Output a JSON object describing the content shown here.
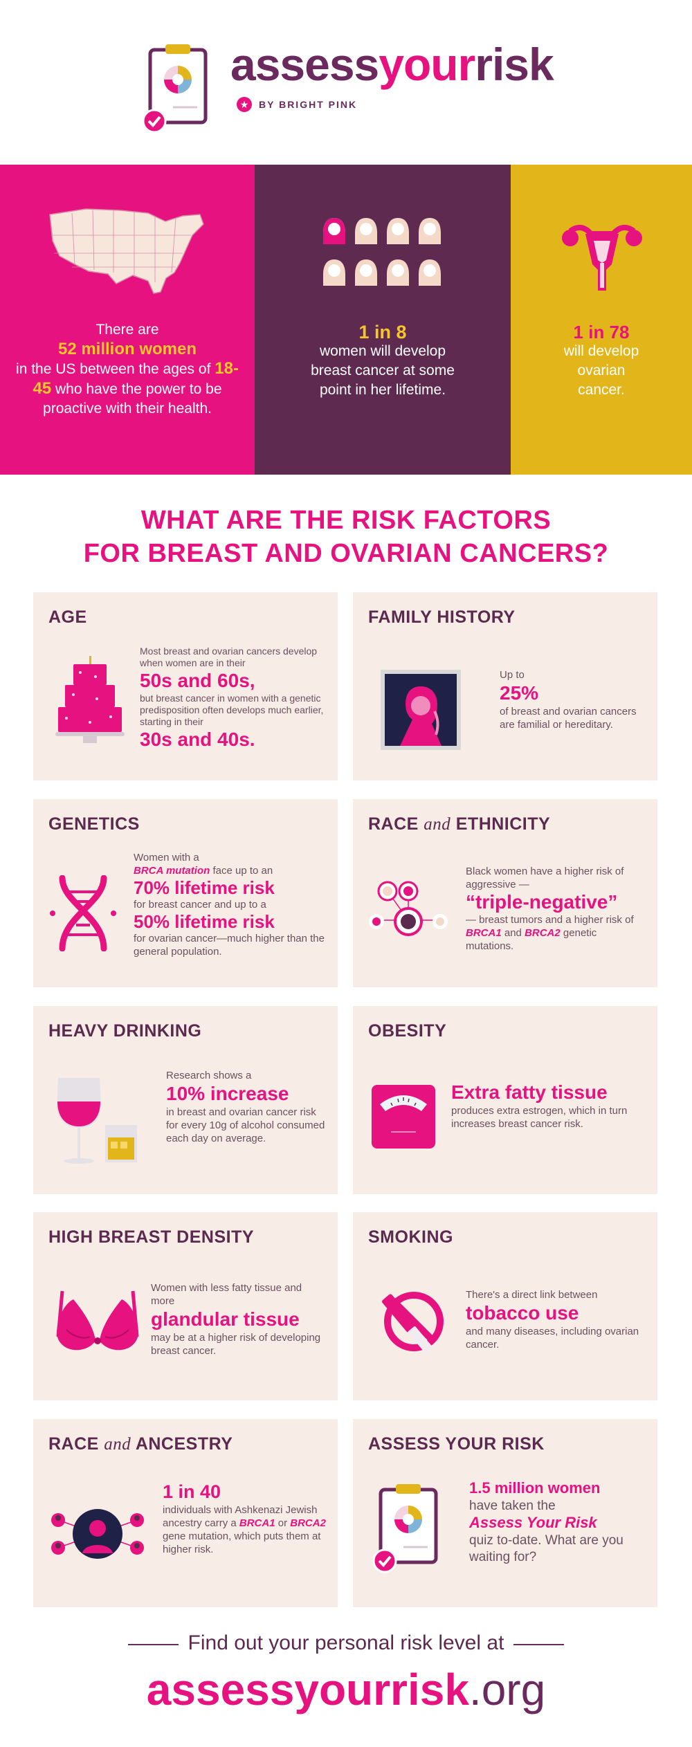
{
  "header": {
    "brand_part1": "assess",
    "brand_part2": "your",
    "brand_part3": "risk",
    "byline": "BY BRIGHT PINK",
    "byline_icon": "star-icon",
    "logo_icon": "clipboard-chart-icon"
  },
  "stats": {
    "women": {
      "icon": "usa-map-icon",
      "line1": "There are",
      "highlight": "52 million women",
      "line2": "in the US between the ages of",
      "ages": "18-45",
      "line3": "who have the power to be proactive with their health."
    },
    "breast": {
      "icon": "women-group-icon",
      "highlight": "1 in 8",
      "text": "women will develop breast cancer at some point in her lifetime."
    },
    "ovarian": {
      "icon": "uterus-icon",
      "highlight": "1 in 78",
      "text": "will develop ovarian cancer."
    }
  },
  "title": {
    "line1": "WHAT ARE THE RISK FACTORS",
    "line2": "FOR BREAST AND OVARIAN CANCERS?"
  },
  "cards": {
    "age": {
      "title": "AGE",
      "icon": "birthday-cake-icon",
      "t1": "Most breast and ovarian cancers develop when women are in their",
      "em1": "50s and 60s,",
      "t2": "but breast cancer in women with a genetic predisposition often develops much earlier, starting in their",
      "em2": "30s and 40s."
    },
    "family": {
      "title": "FAMILY HISTORY",
      "icon": "family-portrait-icon",
      "t1": "Up to",
      "em1": "25%",
      "t2": "of breast and ovarian cancers are familial or hereditary."
    },
    "genetics": {
      "title": "GENETICS",
      "icon": "dna-icon",
      "t1": "Women with a",
      "brca": "BRCA mutation",
      "t2": "face up to an",
      "em1": "70% lifetime risk",
      "t3": "for breast cancer and up to a",
      "em2": "50% lifetime risk",
      "t4": "for ovarian cancer—much higher than the general population."
    },
    "race_ethnicity": {
      "title_a": "RACE",
      "title_and": "and",
      "title_b": "ETHNICITY",
      "icon": "people-network-icon",
      "t1": "Black women have a higher risk of aggressive —",
      "em1": "“triple-negative”",
      "t2": "— breast tumors and a higher risk of",
      "brca1": "BRCA1",
      "and": "and",
      "brca2": "BRCA2",
      "t3": "genetic mutations."
    },
    "drinking": {
      "title": "HEAVY DRINKING",
      "icon": "wine-glass-icon",
      "t1": "Research shows a",
      "em1": "10% increase",
      "t2": "in breast and ovarian cancer risk for every 10g of alcohol consumed each day on average."
    },
    "obesity": {
      "title": "OBESITY",
      "icon": "scale-icon",
      "em1": "Extra fatty tissue",
      "t1": "produces extra estrogen, which in turn increases breast cancer risk."
    },
    "density": {
      "title": "HIGH BREAST DENSITY",
      "icon": "bra-icon",
      "t1": "Women with less fatty tissue and more",
      "em1": "glandular tissue",
      "t2": "may be at a higher risk of developing breast cancer."
    },
    "smoking": {
      "title": "SMOKING",
      "icon": "no-smoking-icon",
      "t1": "There's a direct link between",
      "em1": "tobacco use",
      "t2": "and many diseases, including ovarian cancer."
    },
    "ancestry": {
      "title_a": "RACE",
      "title_and": "and",
      "title_b": "ANCESTRY",
      "icon": "ancestry-network-icon",
      "em1": "1 in 40",
      "t1": "individuals with Ashkenazi Jewish ancestry carry a",
      "brca1": "BRCA1",
      "or": "or",
      "brca2": "BRCA2",
      "t2": "gene mutation, which puts them at higher risk."
    },
    "assess": {
      "title": "ASSESS YOUR RISK",
      "icon": "clipboard-check-icon",
      "em1": "1.5 million women",
      "t1": "have taken the",
      "quiz": "Assess Your Risk",
      "t2": "quiz to-date. What are you waiting for?"
    }
  },
  "footer": {
    "cta": "Find out your personal risk level at",
    "url_main": "assessyourrisk",
    "url_tld": ".org"
  },
  "colors": {
    "pink": "#e5127f",
    "plum": "#5f2a4f",
    "mustard": "#e2b51a",
    "card_bg": "#f8ece6",
    "yellow_text": "#f5c62c"
  }
}
